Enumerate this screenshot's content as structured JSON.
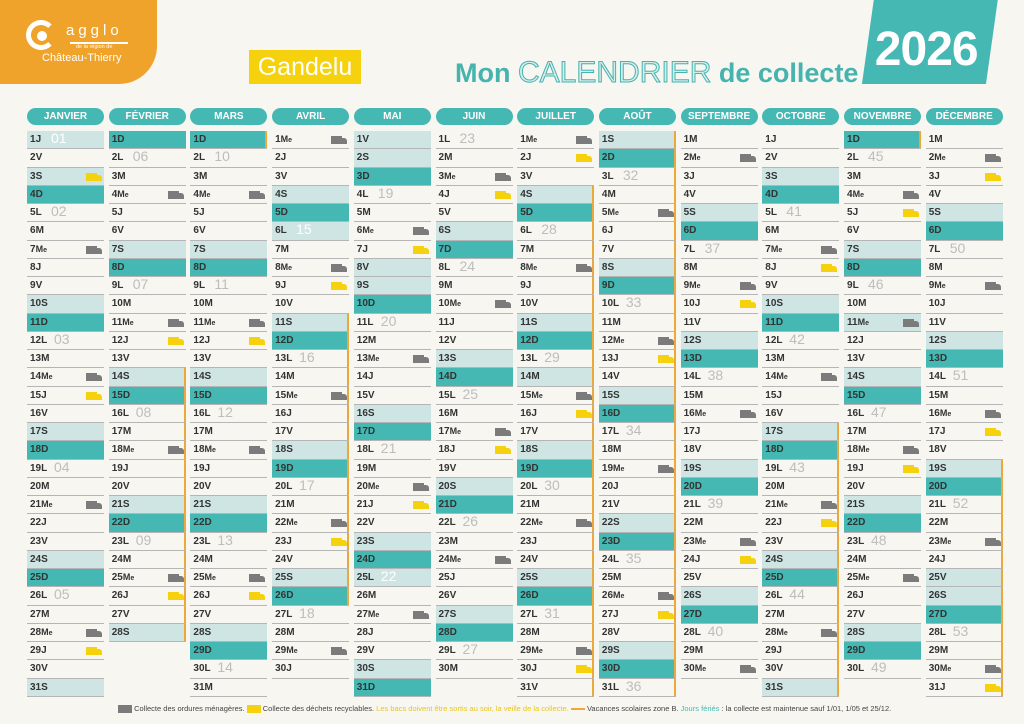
{
  "logo": {
    "name": "agglo",
    "subtitle": "de la région de",
    "city": "Château-Thierry"
  },
  "commune": "Gandelu",
  "title": {
    "part1": "Mon",
    "part2": "CALENDRIER",
    "part3": "de collecte"
  },
  "year": "2026",
  "colors": {
    "teal": "#45b8b3",
    "light_teal": "#cfe5e4",
    "orange": "#f0a32a",
    "yellow": "#f5d20d",
    "gray_truck": "#7b7b7b",
    "vacation_line": "#eca93a"
  },
  "weekday_letters": [
    "D",
    "L",
    "M",
    "Me",
    "J",
    "V",
    "S"
  ],
  "months": [
    {
      "name": "JANVIER",
      "days": 31,
      "gray_truck": [
        7,
        14,
        21,
        28
      ],
      "yellow_truck": [
        3,
        15,
        29
      ],
      "holidays": [
        1
      ],
      "vacation": []
    },
    {
      "name": "FÉVRIER",
      "days": 28,
      "gray_truck": [
        4,
        11,
        18,
        25
      ],
      "yellow_truck": [
        12,
        26
      ],
      "holidays": [],
      "vacation": [
        [
          14,
          28
        ]
      ]
    },
    {
      "name": "MARS",
      "days": 31,
      "gray_truck": [
        4,
        11,
        18,
        25
      ],
      "yellow_truck": [
        12,
        26
      ],
      "holidays": [],
      "vacation": [
        [
          1,
          1
        ]
      ]
    },
    {
      "name": "AVRIL",
      "days": 30,
      "gray_truck": [
        1,
        8,
        15,
        22,
        29
      ],
      "yellow_truck": [
        9,
        23
      ],
      "holidays": [
        6
      ],
      "vacation": [
        [
          11,
          26
        ]
      ]
    },
    {
      "name": "MAI",
      "days": 31,
      "gray_truck": [
        6,
        13,
        20,
        27
      ],
      "yellow_truck": [
        7,
        21
      ],
      "holidays": [
        1,
        8,
        25
      ],
      "vacation": []
    },
    {
      "name": "JUIN",
      "days": 30,
      "gray_truck": [
        3,
        10,
        17,
        24
      ],
      "yellow_truck": [
        4,
        18
      ],
      "holidays": [],
      "vacation": []
    },
    {
      "name": "JUILLET",
      "days": 31,
      "gray_truck": [
        1,
        8,
        15,
        22,
        29
      ],
      "yellow_truck": [
        2,
        16,
        30
      ],
      "holidays": [
        14
      ],
      "vacation": [
        [
          4,
          31
        ]
      ]
    },
    {
      "name": "AOÛT",
      "days": 31,
      "gray_truck": [
        5,
        12,
        19,
        26
      ],
      "yellow_truck": [
        13,
        27
      ],
      "holidays": [
        15
      ],
      "vacation": [
        [
          1,
          31
        ]
      ]
    },
    {
      "name": "SEPTEMBRE",
      "days": 30,
      "gray_truck": [
        2,
        9,
        16,
        23,
        30
      ],
      "yellow_truck": [
        10,
        24
      ],
      "holidays": [],
      "vacation": []
    },
    {
      "name": "OCTOBRE",
      "days": 31,
      "gray_truck": [
        7,
        14,
        21,
        28
      ],
      "yellow_truck": [
        8,
        22
      ],
      "holidays": [],
      "vacation": [
        [
          17,
          31
        ]
      ]
    },
    {
      "name": "NOVEMBRE",
      "days": 30,
      "gray_truck": [
        4,
        11,
        18,
        25
      ],
      "yellow_truck": [
        5,
        19
      ],
      "holidays": [
        11
      ],
      "vacation": [
        [
          1,
          1
        ]
      ]
    },
    {
      "name": "DÉCEMBRE",
      "days": 31,
      "gray_truck": [
        2,
        9,
        16,
        23,
        30
      ],
      "yellow_truck": [
        3,
        17,
        31
      ],
      "holidays": [
        25
      ],
      "vacation": [
        [
          19,
          31
        ]
      ]
    }
  ],
  "legend": {
    "gray": "Collecte des ordures ménagères.",
    "yellow": "Collecte des déchets recyclables.",
    "note": "Les bacs doivent être sortis au soir, la veille de la collecte.",
    "vacances": "Vacances scolaires zone B.",
    "feries_label": "Jours fériés",
    "feries_text": ": la collecte est maintenue sauf 1/01, 1/05 et 25/12."
  }
}
